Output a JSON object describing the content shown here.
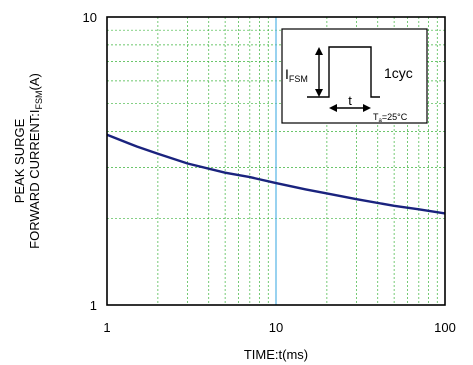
{
  "chart_data": {
    "type": "line",
    "xscale": "log",
    "yscale": "log",
    "xlim": [
      1,
      100
    ],
    "ylim": [
      1,
      10
    ],
    "grid": true,
    "x_ticks": [
      "1",
      "10",
      "100"
    ],
    "y_ticks": [
      "1",
      "10"
    ],
    "xlabel": "TIME:t(ms)",
    "ylabel": {
      "line1": "PEAK SURGE",
      "line2_prefix": "FORWARD CURRENT:I",
      "line2_sub": "FSM",
      "line2_suffix": "(A)"
    },
    "series": [
      {
        "color": "#1a237e",
        "x": [
          1,
          1.5,
          2,
          3,
          5,
          7,
          10,
          15,
          20,
          30,
          50,
          70,
          100
        ],
        "y": [
          3.9,
          3.55,
          3.35,
          3.1,
          2.88,
          2.78,
          2.65,
          2.52,
          2.44,
          2.33,
          2.21,
          2.15,
          2.08
        ]
      }
    ],
    "reference_line": {
      "x": 10,
      "color": "#55b4e6"
    },
    "inset": {
      "ifsm_main": "I",
      "ifsm_sub": "FSM",
      "t_label": "t",
      "cycle_label": "1cyc",
      "ta_main": "T",
      "ta_sub": "a",
      "ta_suffix": "=25°C"
    }
  }
}
